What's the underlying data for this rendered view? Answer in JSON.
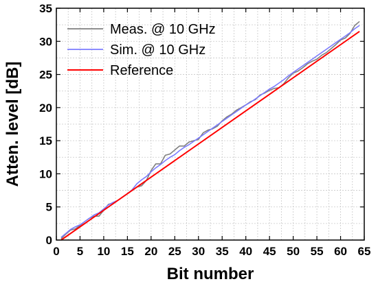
{
  "chart_data": {
    "type": "line",
    "xlabel": "Bit number",
    "ylabel": "Atten. level [dB]",
    "xlim": [
      0,
      65
    ],
    "ylim": [
      0,
      35
    ],
    "xticks": [
      0,
      5,
      10,
      15,
      20,
      25,
      30,
      35,
      40,
      45,
      50,
      55,
      60,
      65
    ],
    "yticks": [
      0,
      5,
      10,
      15,
      20,
      25,
      30,
      35
    ],
    "grid": true,
    "legend_position": "top-left",
    "series": [
      {
        "name": "Meas. @ 10 GHz",
        "color": "#7f7f7f",
        "x": [
          1,
          2,
          3,
          4,
          5,
          6,
          7,
          8,
          9,
          10,
          11,
          12,
          13,
          14,
          15,
          16,
          17,
          18,
          19,
          20,
          21,
          22,
          23,
          24,
          25,
          26,
          27,
          28,
          29,
          30,
          31,
          32,
          33,
          34,
          35,
          36,
          37,
          38,
          39,
          40,
          41,
          42,
          43,
          44,
          45,
          46,
          47,
          48,
          49,
          50,
          51,
          52,
          53,
          54,
          55,
          56,
          57,
          58,
          59,
          60,
          61,
          62,
          63,
          64
        ],
        "y": [
          0.2,
          0.9,
          1.5,
          1.7,
          2.2,
          2.8,
          3.3,
          3.6,
          3.6,
          4.5,
          5.4,
          5.6,
          6.0,
          6.5,
          7.0,
          7.5,
          8.0,
          8.2,
          9.0,
          10.5,
          11.5,
          11.5,
          12.8,
          13.0,
          13.6,
          14.2,
          14.2,
          14.8,
          15.0,
          15.2,
          16.2,
          16.6,
          16.8,
          17.2,
          18.0,
          18.6,
          19.0,
          19.6,
          20.0,
          20.4,
          20.9,
          21.2,
          21.9,
          22.2,
          22.6,
          22.9,
          23.0,
          23.6,
          24.5,
          25.2,
          25.5,
          26.0,
          26.6,
          27.0,
          27.3,
          27.9,
          28.3,
          28.9,
          29.5,
          30.2,
          30.5,
          31.2,
          32.4,
          33.0
        ]
      },
      {
        "name": "Sim. @ 10 GHz",
        "color": "#7b7bff",
        "x": [
          1,
          2,
          3,
          4,
          5,
          6,
          7,
          8,
          9,
          10,
          11,
          12,
          13,
          14,
          15,
          16,
          17,
          18,
          19,
          20,
          21,
          22,
          23,
          24,
          25,
          26,
          27,
          28,
          29,
          30,
          31,
          32,
          33,
          34,
          35,
          36,
          37,
          38,
          39,
          40,
          41,
          42,
          43,
          44,
          45,
          46,
          47,
          48,
          49,
          50,
          51,
          52,
          53,
          54,
          55,
          56,
          57,
          58,
          59,
          60,
          61,
          62,
          63,
          64
        ],
        "y": [
          0.4,
          1.0,
          1.6,
          2.0,
          2.3,
          2.8,
          3.3,
          3.8,
          4.1,
          4.7,
          5.3,
          5.7,
          6.0,
          6.5,
          7.0,
          7.6,
          8.5,
          9.1,
          9.6,
          10.3,
          10.9,
          11.4,
          12.0,
          12.5,
          12.9,
          13.5,
          14.0,
          14.4,
          14.9,
          15.4,
          15.9,
          16.4,
          16.9,
          17.4,
          17.9,
          18.4,
          18.9,
          19.4,
          19.9,
          20.4,
          20.8,
          21.3,
          21.8,
          22.3,
          22.8,
          23.2,
          23.7,
          24.2,
          24.8,
          25.3,
          25.8,
          26.3,
          26.8,
          27.3,
          27.8,
          28.3,
          28.8,
          29.3,
          29.8,
          30.3,
          30.8,
          31.3,
          31.9,
          32.4
        ]
      },
      {
        "name": "Reference",
        "color": "#ff0000",
        "x": [
          1,
          64
        ],
        "y": [
          0,
          31.5
        ]
      }
    ]
  }
}
